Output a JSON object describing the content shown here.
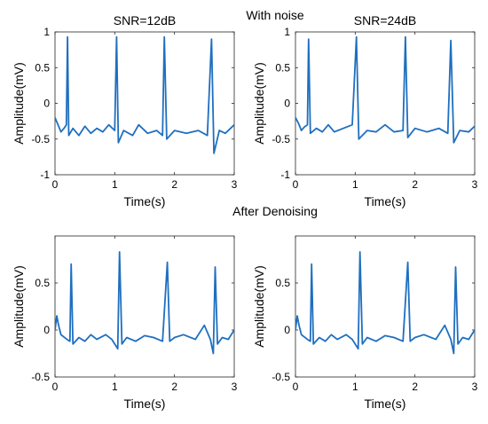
{
  "figure": {
    "top_title": "With noise",
    "middle_title": "After Denoising"
  },
  "chart_data": [
    {
      "type": "line",
      "title": "SNR=12dB",
      "xlabel": "Time(s)",
      "ylabel": "Amplitude(mV)",
      "xlim": [
        0,
        3
      ],
      "ylim": [
        -1,
        1
      ],
      "xticks": [
        "0",
        "1",
        "2",
        "3"
      ],
      "yticks": [
        "-1",
        "-0.5",
        "0",
        "0.5",
        "1"
      ],
      "grid": false,
      "series": [
        {
          "color": "#1f6fbf",
          "points": [
            [
              0,
              -0.2
            ],
            [
              0.05,
              -0.3
            ],
            [
              0.1,
              -0.4
            ],
            [
              0.15,
              -0.35
            ],
            [
              0.19,
              -0.3
            ],
            [
              0.21,
              0.93
            ],
            [
              0.23,
              -0.45
            ],
            [
              0.3,
              -0.35
            ],
            [
              0.4,
              -0.45
            ],
            [
              0.5,
              -0.32
            ],
            [
              0.6,
              -0.42
            ],
            [
              0.7,
              -0.35
            ],
            [
              0.8,
              -0.4
            ],
            [
              0.9,
              -0.3
            ],
            [
              1.0,
              -0.38
            ],
            [
              1.03,
              0.93
            ],
            [
              1.06,
              -0.55
            ],
            [
              1.15,
              -0.38
            ],
            [
              1.3,
              -0.45
            ],
            [
              1.4,
              -0.3
            ],
            [
              1.55,
              -0.42
            ],
            [
              1.7,
              -0.38
            ],
            [
              1.8,
              -0.45
            ],
            [
              1.83,
              0.93
            ],
            [
              1.87,
              -0.5
            ],
            [
              2.0,
              -0.38
            ],
            [
              2.2,
              -0.42
            ],
            [
              2.4,
              -0.38
            ],
            [
              2.55,
              -0.45
            ],
            [
              2.62,
              0.9
            ],
            [
              2.66,
              -0.7
            ],
            [
              2.75,
              -0.38
            ],
            [
              2.85,
              -0.42
            ],
            [
              3.0,
              -0.3
            ]
          ]
        }
      ]
    },
    {
      "type": "line",
      "title": "SNR=24dB",
      "xlabel": "Time(s)",
      "ylabel": "Amplitude(mV)",
      "xlim": [
        0,
        3
      ],
      "ylim": [
        -1,
        1
      ],
      "xticks": [
        "0",
        "1",
        "2",
        "3"
      ],
      "yticks": [
        "-1",
        "-0.5",
        "0",
        "0.5",
        "1"
      ],
      "grid": false,
      "series": [
        {
          "color": "#1f6fbf",
          "points": [
            [
              0,
              -0.2
            ],
            [
              0.05,
              -0.28
            ],
            [
              0.1,
              -0.38
            ],
            [
              0.15,
              -0.33
            ],
            [
              0.2,
              -0.3
            ],
            [
              0.22,
              0.9
            ],
            [
              0.25,
              -0.42
            ],
            [
              0.35,
              -0.35
            ],
            [
              0.45,
              -0.4
            ],
            [
              0.55,
              -0.3
            ],
            [
              0.65,
              -0.4
            ],
            [
              0.8,
              -0.35
            ],
            [
              0.95,
              -0.3
            ],
            [
              1.02,
              0.93
            ],
            [
              1.06,
              -0.5
            ],
            [
              1.2,
              -0.38
            ],
            [
              1.35,
              -0.4
            ],
            [
              1.5,
              -0.3
            ],
            [
              1.65,
              -0.4
            ],
            [
              1.8,
              -0.38
            ],
            [
              1.84,
              0.93
            ],
            [
              1.88,
              -0.48
            ],
            [
              2.0,
              -0.35
            ],
            [
              2.2,
              -0.4
            ],
            [
              2.4,
              -0.35
            ],
            [
              2.55,
              -0.42
            ],
            [
              2.6,
              0.88
            ],
            [
              2.65,
              -0.55
            ],
            [
              2.75,
              -0.38
            ],
            [
              2.9,
              -0.4
            ],
            [
              3.0,
              -0.32
            ]
          ]
        }
      ]
    },
    {
      "type": "line",
      "title": "",
      "xlabel": "Time(s)",
      "ylabel": "Amplitude(mV)",
      "xlim": [
        0,
        3
      ],
      "ylim": [
        -0.5,
        1
      ],
      "xticks": [
        "0",
        "1",
        "2",
        "3"
      ],
      "yticks": [
        "-0.5",
        "0",
        "0.5"
      ],
      "grid": false,
      "series": [
        {
          "color": "#1f6fbf",
          "points": [
            [
              0,
              0.0
            ],
            [
              0.03,
              0.15
            ],
            [
              0.06,
              0.05
            ],
            [
              0.1,
              -0.05
            ],
            [
              0.2,
              -0.1
            ],
            [
              0.25,
              -0.12
            ],
            [
              0.27,
              0.7
            ],
            [
              0.3,
              -0.15
            ],
            [
              0.4,
              -0.08
            ],
            [
              0.5,
              -0.12
            ],
            [
              0.6,
              -0.05
            ],
            [
              0.7,
              -0.1
            ],
            [
              0.85,
              -0.05
            ],
            [
              0.95,
              -0.1
            ],
            [
              1.05,
              -0.2
            ],
            [
              1.08,
              0.83
            ],
            [
              1.12,
              -0.15
            ],
            [
              1.2,
              -0.08
            ],
            [
              1.35,
              -0.12
            ],
            [
              1.5,
              -0.06
            ],
            [
              1.65,
              -0.08
            ],
            [
              1.8,
              -0.12
            ],
            [
              1.88,
              0.72
            ],
            [
              1.92,
              -0.12
            ],
            [
              2.0,
              -0.08
            ],
            [
              2.15,
              -0.05
            ],
            [
              2.35,
              -0.1
            ],
            [
              2.5,
              0.05
            ],
            [
              2.6,
              -0.1
            ],
            [
              2.65,
              -0.25
            ],
            [
              2.68,
              0.67
            ],
            [
              2.72,
              -0.15
            ],
            [
              2.8,
              -0.08
            ],
            [
              2.9,
              -0.1
            ],
            [
              3.0,
              0.0
            ]
          ]
        }
      ]
    },
    {
      "type": "line",
      "title": "",
      "xlabel": "Time(s)",
      "ylabel": "Amplitude(mV)",
      "xlim": [
        0,
        3
      ],
      "ylim": [
        -0.5,
        1
      ],
      "xticks": [
        "0",
        "1",
        "2",
        "3"
      ],
      "yticks": [
        "-0.5",
        "0",
        "0.5"
      ],
      "grid": false,
      "series": [
        {
          "color": "#1f6fbf",
          "points": [
            [
              0,
              0.0
            ],
            [
              0.03,
              0.15
            ],
            [
              0.06,
              0.05
            ],
            [
              0.1,
              -0.05
            ],
            [
              0.2,
              -0.1
            ],
            [
              0.25,
              -0.12
            ],
            [
              0.27,
              0.7
            ],
            [
              0.3,
              -0.15
            ],
            [
              0.4,
              -0.08
            ],
            [
              0.5,
              -0.12
            ],
            [
              0.6,
              -0.05
            ],
            [
              0.7,
              -0.1
            ],
            [
              0.85,
              -0.05
            ],
            [
              0.95,
              -0.1
            ],
            [
              1.05,
              -0.2
            ],
            [
              1.08,
              0.83
            ],
            [
              1.12,
              -0.15
            ],
            [
              1.2,
              -0.08
            ],
            [
              1.35,
              -0.12
            ],
            [
              1.5,
              -0.06
            ],
            [
              1.65,
              -0.08
            ],
            [
              1.8,
              -0.12
            ],
            [
              1.88,
              0.72
            ],
            [
              1.92,
              -0.12
            ],
            [
              2.0,
              -0.08
            ],
            [
              2.15,
              -0.05
            ],
            [
              2.35,
              -0.1
            ],
            [
              2.5,
              0.05
            ],
            [
              2.6,
              -0.1
            ],
            [
              2.65,
              -0.25
            ],
            [
              2.68,
              0.67
            ],
            [
              2.72,
              -0.15
            ],
            [
              2.8,
              -0.08
            ],
            [
              2.9,
              -0.1
            ],
            [
              3.0,
              0.0
            ]
          ]
        }
      ]
    }
  ]
}
